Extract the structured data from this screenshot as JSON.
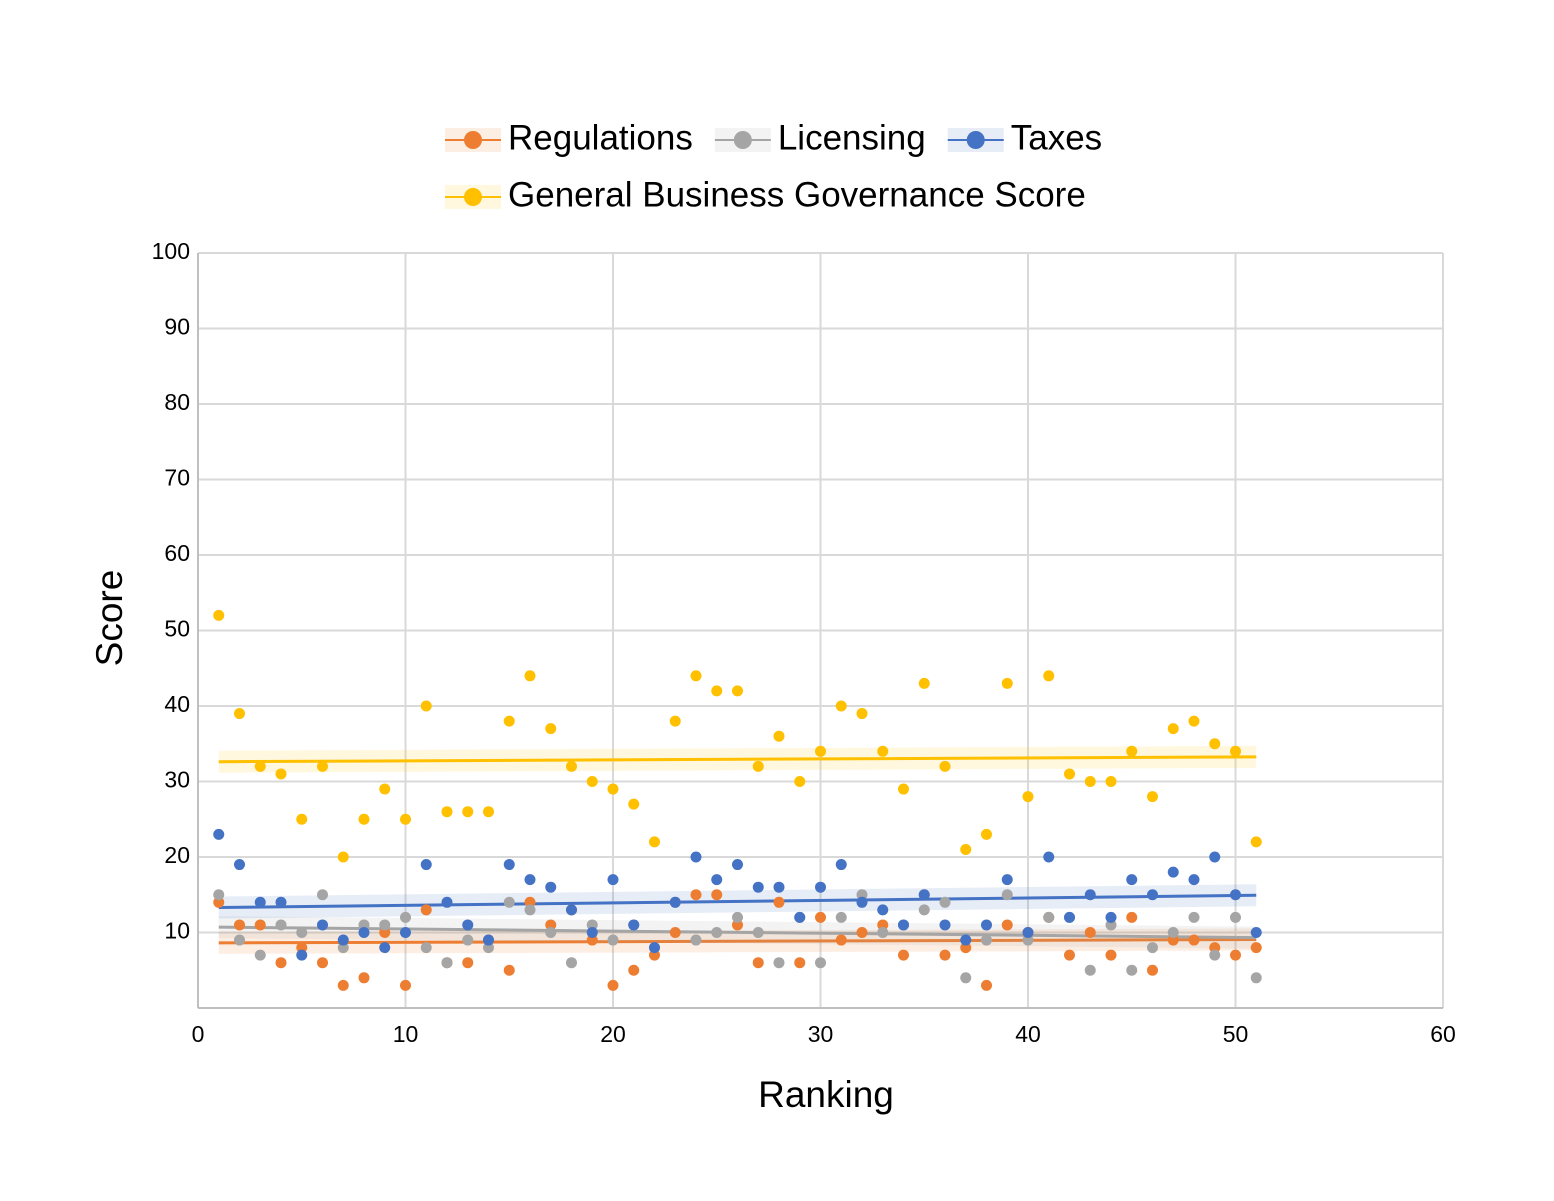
{
  "chart_data": {
    "type": "scatter",
    "x_label": "Ranking",
    "y_label": "Score",
    "x": [
      1,
      2,
      3,
      4,
      5,
      6,
      7,
      8,
      9,
      10,
      11,
      12,
      13,
      14,
      15,
      16,
      17,
      18,
      19,
      20,
      21,
      22,
      23,
      24,
      25,
      26,
      27,
      28,
      29,
      30,
      31,
      32,
      33,
      34,
      35,
      36,
      37,
      38,
      39,
      40,
      41,
      42,
      43,
      44,
      45,
      46,
      47,
      48,
      49,
      50,
      51
    ],
    "series": [
      {
        "name": "Regulations",
        "color": "#ed7d31",
        "values": [
          14,
          11,
          11,
          6,
          8,
          6,
          3,
          4,
          10,
          3,
          13,
          6,
          6,
          9,
          5,
          14,
          11,
          13,
          9,
          3,
          5,
          7,
          10,
          15,
          15,
          11,
          6,
          14,
          6,
          12,
          9,
          10,
          11,
          7,
          15,
          7,
          8,
          3,
          11,
          10,
          12,
          7,
          10,
          7,
          12,
          5,
          9,
          9,
          8,
          7,
          8
        ]
      },
      {
        "name": "Licensing",
        "color": "#a5a5a5",
        "values": [
          15,
          9,
          7,
          11,
          10,
          15,
          8,
          11,
          11,
          12,
          8,
          6,
          9,
          8,
          14,
          13,
          10,
          6,
          11,
          9,
          11,
          8,
          14,
          9,
          10,
          12,
          10,
          6,
          12,
          6,
          12,
          15,
          10,
          11,
          13,
          14,
          4,
          9,
          15,
          9,
          12,
          12,
          5,
          11,
          5,
          8,
          10,
          12,
          7,
          12,
          4
        ]
      },
      {
        "name": "Taxes",
        "color": "#4472c4",
        "values": [
          23,
          19,
          14,
          14,
          7,
          11,
          9,
          10,
          8,
          10,
          19,
          14,
          11,
          9,
          19,
          17,
          16,
          13,
          10,
          17,
          11,
          8,
          14,
          20,
          17,
          19,
          16,
          16,
          12,
          16,
          19,
          14,
          13,
          11,
          15,
          11,
          9,
          11,
          17,
          10,
          20,
          12,
          15,
          12,
          17,
          15,
          18,
          17,
          20,
          15,
          10
        ]
      },
      {
        "name": "General Business Governance Score",
        "color": "#ffc000",
        "values": [
          52,
          39,
          32,
          31,
          25,
          32,
          20,
          25,
          29,
          25,
          40,
          26,
          26,
          26,
          38,
          44,
          37,
          32,
          30,
          29,
          27,
          22,
          38,
          44,
          42,
          42,
          32,
          36,
          30,
          34,
          40,
          39,
          34,
          29,
          43,
          32,
          21,
          23,
          43,
          28,
          44,
          31,
          30,
          30,
          34,
          28,
          37,
          38,
          35,
          34,
          22
        ]
      }
    ],
    "xlim": [
      0,
      60
    ],
    "xticks": [
      0,
      10,
      20,
      30,
      40,
      50,
      60
    ],
    "ylim": [
      0,
      100
    ],
    "yticks": [
      10,
      20,
      30,
      40,
      50,
      60,
      70,
      80,
      90,
      100
    ],
    "grid": true,
    "trendline": true,
    "legend": "top"
  }
}
